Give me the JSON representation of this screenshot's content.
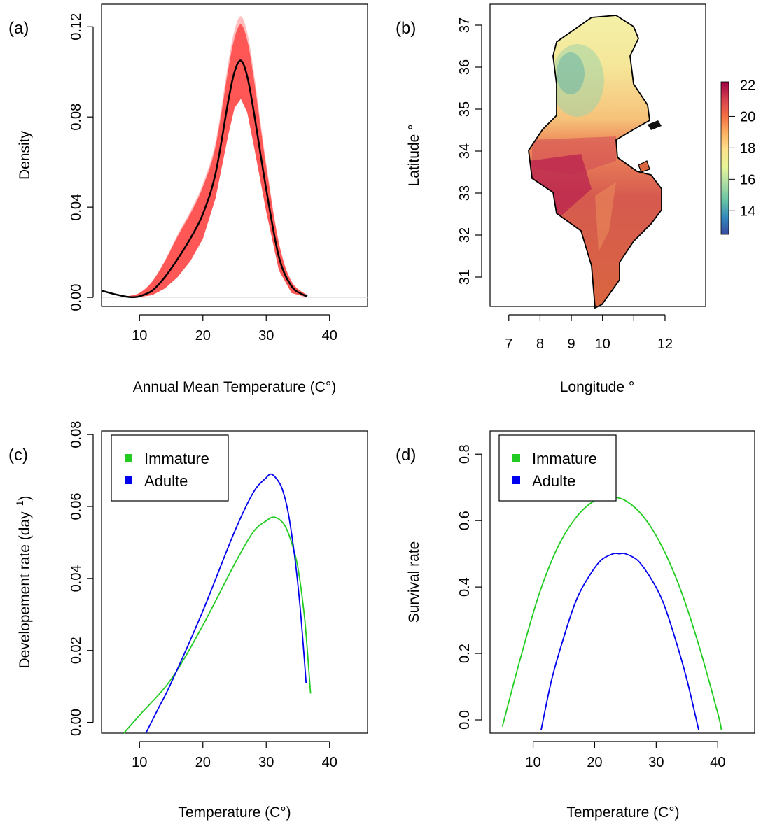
{
  "chart_data": [
    {
      "panel": "(a)",
      "type": "line",
      "xlabel": "Annual Mean Temperature (C°)",
      "ylabel": "Density",
      "xlim": [
        4,
        46
      ],
      "ylim": [
        -0.004,
        0.13
      ],
      "xticks": [
        "10",
        "20",
        "30",
        "40"
      ],
      "yticks": [
        "0.00",
        "0.04",
        "0.08",
        "0.12"
      ],
      "series": [
        {
          "color": "#000000",
          "x": [
            4,
            6,
            8,
            9,
            10,
            12,
            14,
            16,
            18,
            20,
            22,
            24,
            25,
            26,
            27,
            28,
            30,
            32,
            34,
            36,
            36.5
          ],
          "y": [
            0.003,
            0.0015,
            0.0003,
            0.0001,
            0.0005,
            0.003,
            0.009,
            0.017,
            0.026,
            0.037,
            0.055,
            0.087,
            0.1,
            0.105,
            0.098,
            0.083,
            0.048,
            0.018,
            0.005,
            0.001,
            0.0005
          ]
        }
      ],
      "envelope": {
        "color": "#ff0000",
        "x": [
          8,
          10,
          12,
          14,
          16,
          18,
          20,
          22,
          24,
          25,
          26,
          27,
          28,
          30,
          32,
          34,
          36.5
        ],
        "lower": [
          0,
          0.0002,
          0.001,
          0.004,
          0.009,
          0.016,
          0.026,
          0.044,
          0.072,
          0.084,
          0.088,
          0.082,
          0.068,
          0.038,
          0.012,
          0.002,
          0
        ],
        "upper": [
          0.0005,
          0.002,
          0.007,
          0.016,
          0.027,
          0.037,
          0.049,
          0.067,
          0.101,
          0.115,
          0.121,
          0.114,
          0.098,
          0.058,
          0.024,
          0.007,
          0.001
        ]
      }
    },
    {
      "panel": "(b)",
      "type": "heatmap",
      "xlabel": "Longitude °",
      "ylabel": "Latitude °",
      "xlim": [
        6.4,
        13.3
      ],
      "ylim": [
        30.3,
        37.5
      ],
      "xticks": [
        "7",
        "8",
        "9",
        "10",
        "12"
      ],
      "xtick_values": [
        7,
        8,
        9,
        10,
        12
      ],
      "extra_xticks": [
        11
      ],
      "yticks": [
        "31",
        "32",
        "33",
        "34",
        "35",
        "36",
        "37"
      ],
      "legend_ticks": [
        "22",
        "20",
        "18",
        "16",
        "14"
      ],
      "legend_range": [
        12.5,
        22.2
      ],
      "palette": [
        "#3a4a9f",
        "#3288bd",
        "#66c2a5",
        "#abdda4",
        "#e6f598",
        "#fee08b",
        "#fdae61",
        "#f46d43",
        "#d53e4f",
        "#9e0142"
      ]
    },
    {
      "panel": "(c)",
      "type": "line",
      "xlabel": "Temperature (C°)",
      "ylabel": "Developement rate (day",
      "ylabel_sup": "−1",
      "ylabel_close": ")",
      "xlim": [
        4,
        46
      ],
      "ylim": [
        -0.003,
        0.081
      ],
      "xticks": [
        "10",
        "20",
        "30",
        "40"
      ],
      "yticks": [
        "0.00",
        "0.02",
        "0.04",
        "0.06",
        "0.08"
      ],
      "legend": {
        "position": "top-left",
        "entries": [
          {
            "label": "Immature",
            "color": "#22cc22"
          },
          {
            "label": "Adulte",
            "color": "#0000ee"
          }
        ]
      },
      "series": [
        {
          "name": "Immature",
          "color": "#22cc22",
          "x": [
            7.5,
            10,
            15,
            20,
            25,
            28,
            30,
            31,
            32,
            33,
            34,
            35,
            36,
            36.5,
            37
          ],
          "y": [
            -0.003,
            0.002,
            0.012,
            0.027,
            0.044,
            0.053,
            0.056,
            0.057,
            0.0565,
            0.0545,
            0.05,
            0.043,
            0.03,
            0.02,
            0.008
          ]
        },
        {
          "name": "Adulte",
          "color": "#0000ee",
          "x": [
            11,
            13,
            15,
            20,
            25,
            28,
            30,
            30.7,
            31.5,
            32.5,
            33.5,
            34.5,
            35.3,
            36,
            36.3
          ],
          "y": [
            -0.003,
            0.004,
            0.011,
            0.031,
            0.053,
            0.064,
            0.068,
            0.069,
            0.068,
            0.065,
            0.058,
            0.046,
            0.033,
            0.018,
            0.011
          ]
        }
      ]
    },
    {
      "panel": "(d)",
      "type": "line",
      "xlabel": "Temperature (C°)",
      "ylabel": "Survival rate",
      "xlim": [
        3,
        46
      ],
      "ylim": [
        -0.04,
        0.87
      ],
      "xticks": [
        "10",
        "20",
        "30",
        "40"
      ],
      "yticks": [
        "0.0",
        "0.2",
        "0.4",
        "0.6",
        "0.8"
      ],
      "legend": {
        "position": "top-left",
        "entries": [
          {
            "label": "Immature",
            "color": "#22cc22"
          },
          {
            "label": "Adulte",
            "color": "#0000ee"
          }
        ]
      },
      "series": [
        {
          "name": "Immature",
          "color": "#22cc22",
          "x": [
            5,
            8,
            11,
            14,
            17,
            20,
            22.5,
            25,
            28,
            31,
            34,
            37,
            40,
            40.6
          ],
          "y": [
            -0.02,
            0.19,
            0.38,
            0.52,
            0.61,
            0.66,
            0.67,
            0.66,
            0.61,
            0.52,
            0.39,
            0.22,
            0.02,
            -0.03
          ]
        },
        {
          "name": "Adulte",
          "color": "#0000ee",
          "x": [
            11.3,
            13,
            15,
            17,
            19,
            21,
            23,
            24,
            25,
            27,
            29,
            31,
            33,
            35,
            36.9
          ],
          "y": [
            -0.03,
            0.12,
            0.25,
            0.36,
            0.43,
            0.48,
            0.5,
            0.5,
            0.5,
            0.48,
            0.43,
            0.36,
            0.25,
            0.12,
            -0.03
          ]
        }
      ]
    }
  ]
}
